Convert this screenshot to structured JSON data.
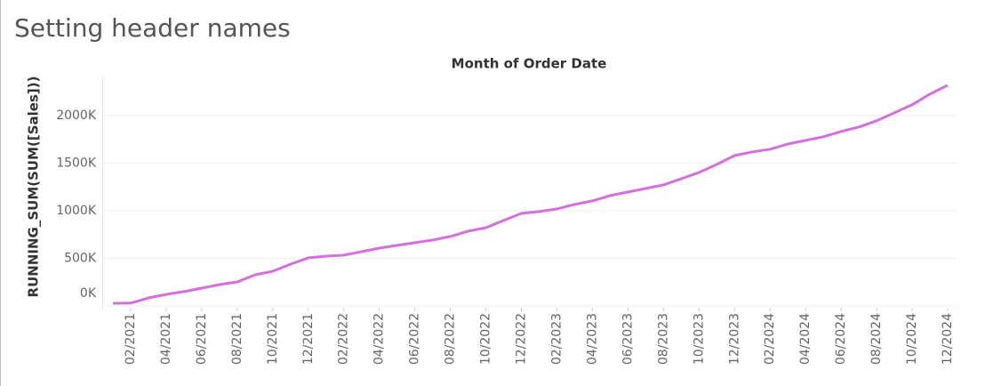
{
  "chart_data": {
    "type": "line",
    "title": "Setting header names",
    "header": "Month of Order Date",
    "y_label": "RUNNING_SUM(SUM([Sales]))",
    "categories": [
      null,
      "02/2021",
      null,
      "04/2021",
      null,
      "06/2021",
      null,
      "08/2021",
      null,
      "10/2021",
      null,
      "12/2021",
      null,
      "02/2022",
      null,
      "04/2022",
      null,
      "06/2022",
      null,
      "08/2022",
      null,
      "10/2022",
      null,
      "12/2022",
      null,
      "02/2023",
      null,
      "04/2023",
      null,
      "06/2023",
      null,
      "08/2023",
      null,
      "10/2023",
      null,
      "12/2023",
      null,
      "02/2024",
      null,
      "04/2024",
      null,
      "06/2024",
      null,
      "08/2024",
      null,
      "10/2024",
      null,
      "12/2024"
    ],
    "series": [
      {
        "name": "RUNNING_SUM(SUM([Sales]))",
        "color": "#d46fdb",
        "values": [
          28000,
          30000,
          84000,
          121000,
          150000,
          187000,
          224000,
          252000,
          327000,
          364000,
          439000,
          505000,
          523000,
          533000,
          570000,
          607000,
          636000,
          664000,
          692000,
          729000,
          785000,
          822000,
          897000,
          972000,
          991000,
          1019000,
          1066000,
          1103000,
          1159000,
          1196000,
          1234000,
          1271000,
          1336000,
          1402000,
          1486000,
          1579000,
          1617000,
          1645000,
          1701000,
          1738000,
          1776000,
          1832000,
          1879000,
          1944000,
          2028000,
          2112000,
          2224000,
          2318000
        ]
      }
    ],
    "ylim": [
      0,
      2400000
    ],
    "yticks": [
      {
        "value": 0,
        "label": "0K"
      },
      {
        "value": 500000,
        "label": "500K"
      },
      {
        "value": 1000000,
        "label": "1000K"
      },
      {
        "value": 1500000,
        "label": "1500K"
      },
      {
        "value": 2000000,
        "label": "2000K"
      }
    ],
    "grid": true
  }
}
